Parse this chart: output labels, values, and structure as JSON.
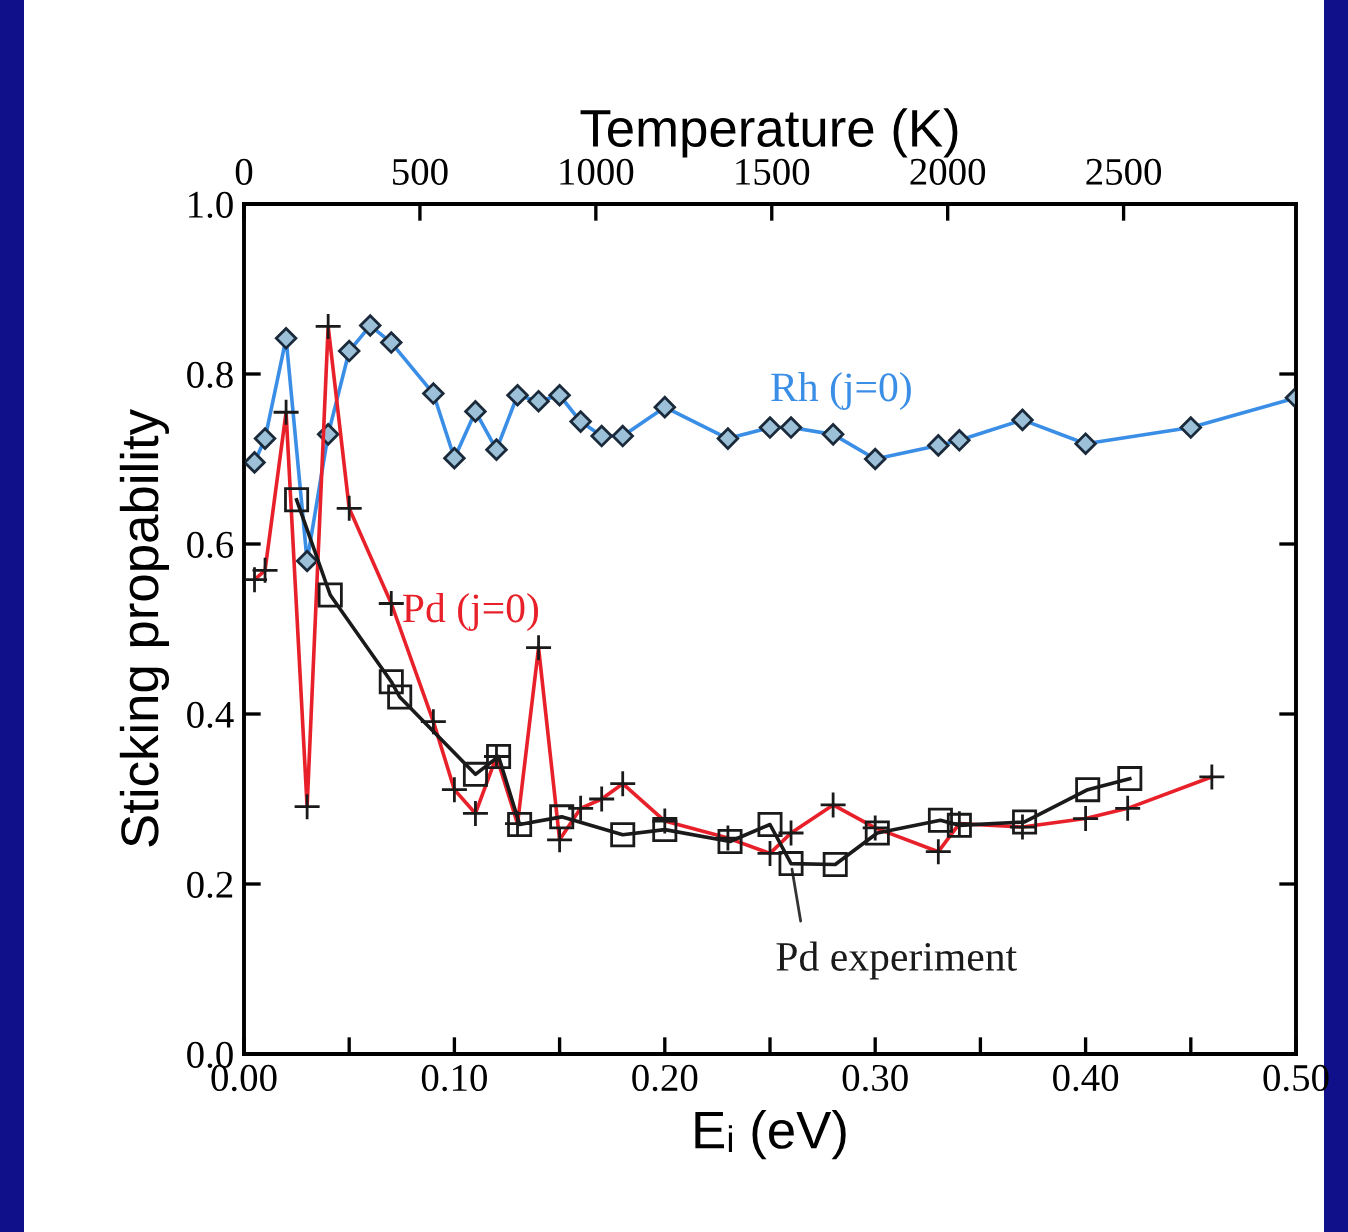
{
  "chart_data": {
    "type": "line",
    "xlabel": "Eᵢ (eV)",
    "ylabel": "Sticking propability",
    "x2label": "Temperature (K)",
    "xlim": [
      0,
      0.5
    ],
    "xticks": [
      {
        "value": 0,
        "label": "0.00"
      },
      {
        "value": 0.05,
        "label": null
      },
      {
        "value": 0.1,
        "label": "0.10"
      },
      {
        "value": 0.15,
        "label": null
      },
      {
        "value": 0.2,
        "label": "0.20"
      },
      {
        "value": 0.25,
        "label": null
      },
      {
        "value": 0.3,
        "label": "0.30"
      },
      {
        "value": 0.35,
        "label": null
      },
      {
        "value": 0.4,
        "label": "0.40"
      },
      {
        "value": 0.45,
        "label": null
      },
      {
        "value": 0.5,
        "label": "0.50"
      }
    ],
    "ylim": [
      0,
      1
    ],
    "yticks": [
      {
        "value": 0,
        "label": "0.0"
      },
      0.2,
      0.4,
      0.6,
      0.8,
      {
        "value": 1,
        "label": "1.0"
      }
    ],
    "x2lim": [
      0,
      2990
    ],
    "x2ticks": [
      0,
      500,
      1000,
      1500,
      2000,
      2500
    ],
    "grid": false,
    "legend": false,
    "line_style": "solid",
    "series": [
      {
        "name": "Rh (j=0)",
        "color": "#3a8ee6",
        "marker": "diamond",
        "x": [
          0.005,
          0.01,
          0.02,
          0.03,
          0.04,
          0.05,
          0.06,
          0.07,
          0.09,
          0.1,
          0.11,
          0.12,
          0.13,
          0.14,
          0.15,
          0.16,
          0.17,
          0.18,
          0.2,
          0.23,
          0.25,
          0.26,
          0.28,
          0.3,
          0.33,
          0.34,
          0.37,
          0.4,
          0.45,
          0.5
        ],
        "values": [
          0.696,
          0.724,
          0.842,
          0.58,
          0.729,
          0.827,
          0.857,
          0.837,
          0.777,
          0.701,
          0.756,
          0.711,
          0.775,
          0.768,
          0.775,
          0.744,
          0.727,
          0.727,
          0.761,
          0.724,
          0.737,
          0.737,
          0.729,
          0.7,
          0.716,
          0.722,
          0.746,
          0.718,
          0.737,
          0.772
        ]
      },
      {
        "name": "Pd (j=0)",
        "color": "#e8202a",
        "marker": "cross",
        "x": [
          0.005,
          0.01,
          0.02,
          0.03,
          0.04,
          0.05,
          0.07,
          0.09,
          0.1,
          0.11,
          0.12,
          0.13,
          0.14,
          0.15,
          0.16,
          0.17,
          0.18,
          0.2,
          0.23,
          0.25,
          0.26,
          0.28,
          0.3,
          0.33,
          0.34,
          0.37,
          0.4,
          0.42,
          0.46
        ],
        "values": [
          0.558,
          0.569,
          0.755,
          0.291,
          0.856,
          0.642,
          0.53,
          0.391,
          0.311,
          0.283,
          0.35,
          0.271,
          0.478,
          0.252,
          0.289,
          0.3,
          0.318,
          0.274,
          0.254,
          0.236,
          0.26,
          0.293,
          0.266,
          0.238,
          0.271,
          0.267,
          0.277,
          0.289,
          0.326
        ]
      },
      {
        "name": "Pd experiment",
        "color": "#1a1a1a",
        "marker": "square",
        "x": [
          0.025,
          0.041,
          0.07,
          0.074,
          0.11,
          0.121,
          0.131,
          0.151,
          0.18,
          0.2,
          0.231,
          0.25,
          0.26,
          0.281,
          0.301,
          0.331,
          0.34,
          0.371,
          0.401,
          0.421
        ],
        "values": [
          0.652,
          0.54,
          0.438,
          0.42,
          0.329,
          0.35,
          0.27,
          0.279,
          0.258,
          0.264,
          0.25,
          0.27,
          0.224,
          0.223,
          0.26,
          0.275,
          0.269,
          0.273,
          0.311,
          0.324
        ]
      }
    ]
  }
}
